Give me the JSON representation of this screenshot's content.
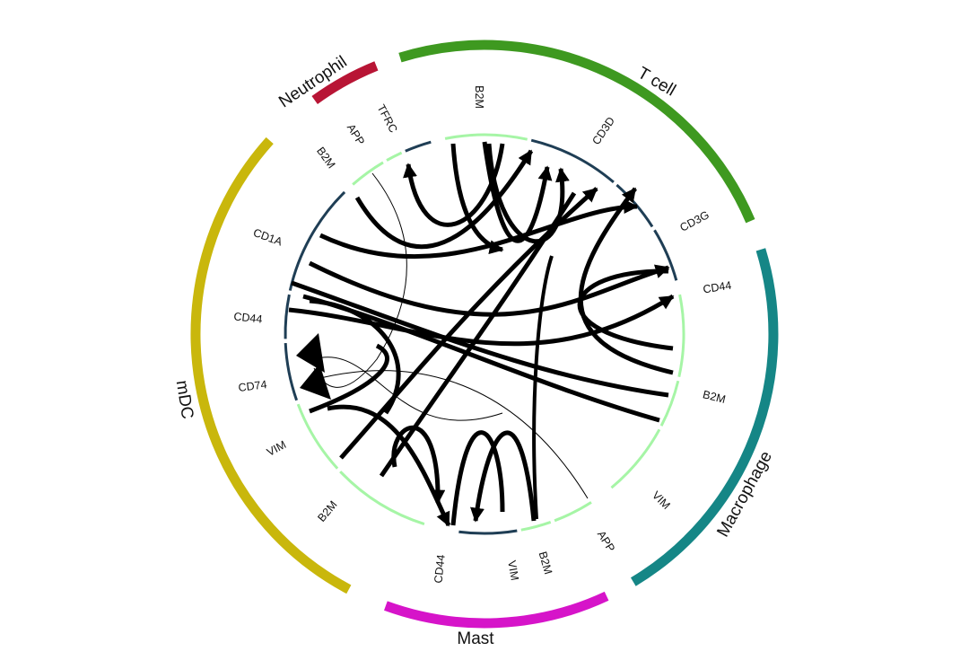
{
  "colors": {
    "receptor_track": "#1f3e55",
    "ligand_track": "#a6f5a6",
    "link": "#000000"
  },
  "cell_types": [
    {
      "name": "Neutrophil",
      "color": "#b81535"
    },
    {
      "name": "T cell",
      "color": "#3e9920"
    },
    {
      "name": "Macrophage",
      "color": "#158686"
    },
    {
      "name": "Mast",
      "color": "#d614c9"
    },
    {
      "name": "mDC",
      "color": "#c9b70c"
    }
  ],
  "genes": [
    {
      "cell": "Neutrophil",
      "label": "B2M",
      "role": "ligand"
    },
    {
      "cell": "Neutrophil",
      "label": "APP",
      "role": "ligand"
    },
    {
      "cell": "Neutrophil",
      "label": "TFRC",
      "role": "receptor"
    },
    {
      "cell": "T cell",
      "label": "B2M",
      "role": "ligand"
    },
    {
      "cell": "T cell",
      "label": "CD3D",
      "role": "receptor"
    },
    {
      "cell": "T cell",
      "label": "CD3G",
      "role": "receptor"
    },
    {
      "cell": "T cell",
      "label": "CD44",
      "role": "receptor"
    },
    {
      "cell": "Macrophage",
      "label": "B2M",
      "role": "ligand"
    },
    {
      "cell": "Macrophage",
      "label": "VIM",
      "role": "ligand"
    },
    {
      "cell": "Macrophage",
      "label": "APP",
      "role": "ligand"
    },
    {
      "cell": "Mast",
      "label": "B2M",
      "role": "ligand"
    },
    {
      "cell": "Mast",
      "label": "VIM",
      "role": "ligand"
    },
    {
      "cell": "Mast",
      "label": "CD44",
      "role": "receptor"
    },
    {
      "cell": "mDC",
      "label": "B2M",
      "role": "ligand"
    },
    {
      "cell": "mDC",
      "label": "VIM",
      "role": "ligand"
    },
    {
      "cell": "mDC",
      "label": "CD74",
      "role": "receptor"
    },
    {
      "cell": "mDC",
      "label": "CD44",
      "role": "receptor"
    },
    {
      "cell": "mDC",
      "label": "CD1A",
      "role": "receptor"
    }
  ]
}
